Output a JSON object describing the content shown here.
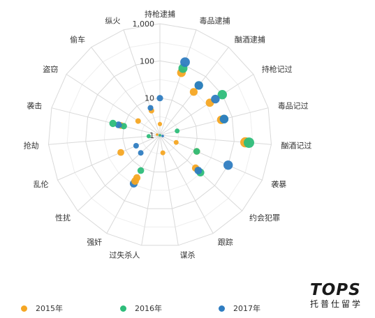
{
  "chart_data": {
    "type": "radar-scatter",
    "title": "",
    "scale": "log",
    "rlim": [
      1,
      1000
    ],
    "ticks": [
      "1",
      "10",
      "100",
      "1,000"
    ],
    "tick_values": [
      1,
      10,
      100,
      1000
    ],
    "categories": [
      "持枪逮捕",
      "毒品逮捕",
      "酗酒逮捕",
      "持枪记过",
      "毒品记过",
      "酗酒记过",
      "袭暴",
      "约会犯罪",
      "跟踪",
      "谋杀",
      "过失杀人",
      "强奸",
      "性扰",
      "乱伦",
      "抢劫",
      "袭击",
      "盗窃",
      "偷车",
      "纵火"
    ],
    "legend_position": "bottom",
    "series": [
      {
        "name": "2015年",
        "color": "#f5a623",
        "values": [
          2,
          60,
          30,
          40,
          50,
          200,
          12,
          20,
          1,
          3,
          1,
          20,
          1,
          1,
          1,
          12,
          1,
          1,
          5
        ]
      },
      {
        "name": "2016年",
        "color": "#2ebd7a",
        "values": [
          1,
          80,
          50,
          100,
          60,
          250,
          12,
          30,
          1,
          1,
          1,
          12,
          1,
          1,
          1,
          10,
          1,
          1,
          1
        ]
      },
      {
        "name": "2017年",
        "color": "#2f7dc1",
        "values": [
          10,
          120,
          50,
          60,
          60,
          1,
          100,
          25,
          1,
          1,
          1,
          30,
          1,
          1,
          1,
          14,
          1,
          1,
          6
        ]
      }
    ],
    "extra_points": [
      {
        "series": 0,
        "category": 6,
        "value": 3
      },
      {
        "series": 1,
        "category": 4,
        "value": 3
      },
      {
        "series": 1,
        "category": 14,
        "value": 2
      },
      {
        "series": 2,
        "category": 13,
        "value": 5
      },
      {
        "series": 2,
        "category": 12,
        "value": 5
      },
      {
        "series": 2,
        "category": 18,
        "value": 1
      },
      {
        "series": 0,
        "category": 13,
        "value": 14
      },
      {
        "series": 1,
        "category": 15,
        "value": 20
      },
      {
        "series": 0,
        "category": 16,
        "value": 5
      },
      {
        "series": 0,
        "category": 11,
        "value": 25
      }
    ]
  },
  "logo": {
    "top": "TOPS",
    "bottom": "托普仕留学"
  }
}
